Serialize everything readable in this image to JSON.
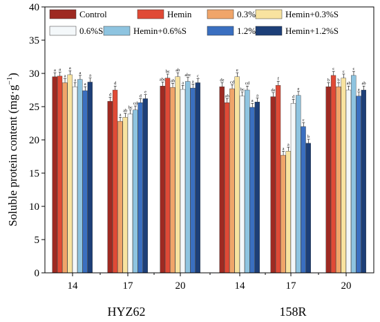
{
  "chart_data": {
    "type": "bar",
    "ylabel_main": "Soluble protein content (mg·g",
    "ylabel_sup": "−1",
    "ylabel_tail": ")",
    "ylim": [
      0,
      40
    ],
    "yticks": [
      "0",
      "5",
      "10",
      "15",
      "20",
      "25",
      "30",
      "35",
      "40"
    ],
    "groups": [
      {
        "label": "HYZ62",
        "categories": [
          "14",
          "17",
          "20"
        ]
      },
      {
        "label": "158R",
        "categories": [
          "14",
          "17",
          "20"
        ]
      }
    ],
    "series": [
      {
        "name": "Control",
        "color": "#9e2a22"
      },
      {
        "name": "Hemin",
        "color": "#e04a36"
      },
      {
        "name": "0.3%S",
        "color": "#f0a56a"
      },
      {
        "name": "Hemin+0.3%S",
        "color": "#f8e3a0"
      },
      {
        "name": "0.6%S",
        "color": "#f4f8fa"
      },
      {
        "name": "Hemin+0.6%S",
        "color": "#8ec4e0"
      },
      {
        "name": "1.2%S",
        "color": "#3a6fc0"
      },
      {
        "name": "Hemin+1.2%S",
        "color": "#1d3f78"
      }
    ],
    "clusters": [
      {
        "values": [
          29.5,
          29.6,
          28.6,
          29.8,
          28.0,
          29.1,
          27.4,
          28.7
        ],
        "letters": [
          "a",
          "a",
          "a",
          "a",
          "a",
          "a",
          "a",
          "a"
        ]
      },
      {
        "values": [
          25.8,
          27.5,
          22.8,
          23.4,
          23.9,
          24.5,
          25.6,
          26.2
        ],
        "letters": [
          "d",
          "d",
          "a",
          "ab",
          "bc",
          "cd",
          "d",
          "e"
        ]
      },
      {
        "values": [
          28.1,
          29.3,
          27.9,
          29.5,
          27.6,
          28.8,
          27.8,
          28.6
        ],
        "letters": [
          "abc",
          "bc",
          "ab",
          "ab",
          "a",
          "abc",
          "a",
          "c"
        ]
      },
      {
        "values": [
          28.0,
          25.6,
          27.7,
          29.5,
          26.6,
          27.5,
          24.9,
          25.7
        ],
        "letters": [
          "de",
          "ab",
          "cd",
          "e",
          "bc",
          "cd",
          "a",
          "a"
        ]
      },
      {
        "values": [
          26.5,
          28.2,
          17.7,
          18.3,
          25.5,
          26.7,
          22.0,
          19.5
        ],
        "letters": [
          "de",
          "f",
          "a",
          "a",
          "d",
          "e",
          "c",
          "b"
        ]
      },
      {
        "values": [
          28.0,
          29.7,
          28.0,
          29.3,
          27.5,
          29.7,
          26.6,
          27.5
        ],
        "letters": [
          "b",
          "c",
          "b",
          "c",
          "ab",
          "c",
          "a",
          "ab"
        ]
      }
    ]
  }
}
